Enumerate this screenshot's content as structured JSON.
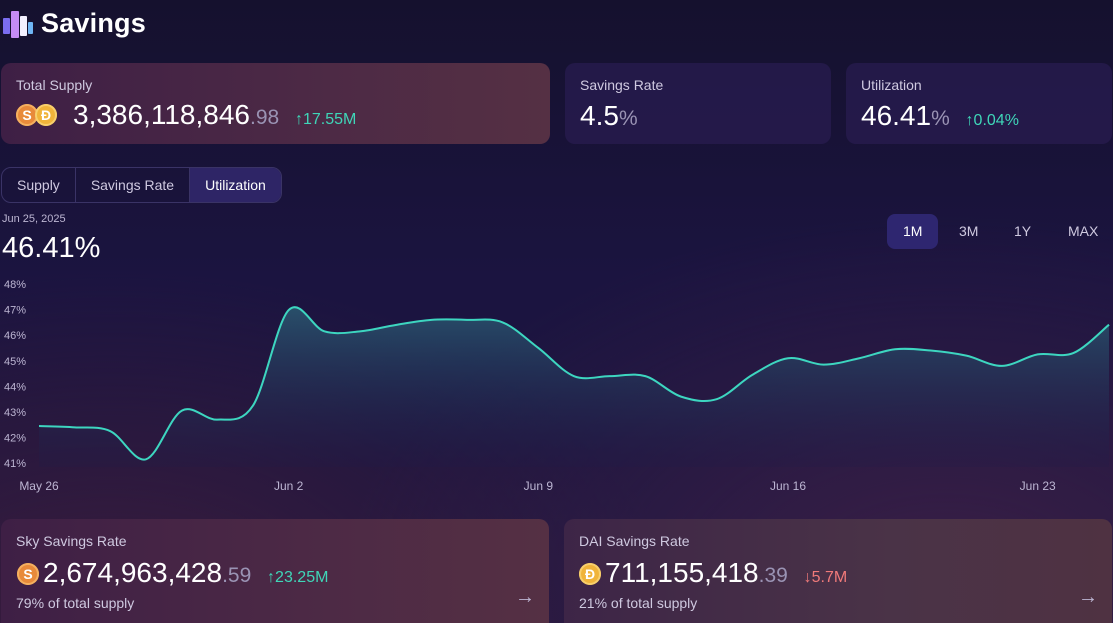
{
  "app": {
    "title": "Savings"
  },
  "stats": {
    "total_supply": {
      "label": "Total Supply",
      "int": "3,386,118,846",
      "dec": ".98",
      "delta": "↑17.55M"
    },
    "savings_rate": {
      "label": "Savings Rate",
      "value": "4.5",
      "unit": "%"
    },
    "utilization": {
      "label": "Utilization",
      "value": "46.41",
      "unit": "%",
      "delta": "↑0.04%"
    }
  },
  "tabs": [
    "Supply",
    "Savings Rate",
    "Utilization"
  ],
  "active_tab": "Utilization",
  "chart_header": {
    "date": "Jun 25, 2025",
    "value": "46.41%"
  },
  "ranges": [
    "1M",
    "3M",
    "1Y",
    "MAX"
  ],
  "active_range": "1M",
  "colors": {
    "line": "#3dd6c0",
    "up": "#3fd6b8",
    "down": "#f07a7a"
  },
  "chart_data": {
    "type": "area",
    "title": "",
    "xlabel": "",
    "ylabel": "",
    "yticks": [
      "48%",
      "47%",
      "46%",
      "45%",
      "44%",
      "43%",
      "42%",
      "41%"
    ],
    "xticks": [
      "May 26",
      "Jun 2",
      "Jun 9",
      "Jun 16",
      "Jun 23"
    ],
    "ylim": [
      40.85,
      48.0
    ],
    "x": [
      "May 26",
      "May 27",
      "May 28",
      "May 29",
      "May 30",
      "May 31",
      "Jun 1",
      "Jun 2",
      "Jun 3",
      "Jun 4",
      "Jun 5",
      "Jun 6",
      "Jun 7",
      "Jun 8",
      "Jun 9",
      "Jun 10",
      "Jun 11",
      "Jun 12",
      "Jun 13",
      "Jun 14",
      "Jun 15",
      "Jun 16",
      "Jun 17",
      "Jun 18",
      "Jun 19",
      "Jun 20",
      "Jun 21",
      "Jun 22",
      "Jun 23",
      "Jun 24",
      "Jun 25"
    ],
    "series": [
      {
        "values": [
          42.45,
          42.4,
          42.25,
          41.15,
          43.05,
          42.7,
          43.25,
          46.98,
          46.15,
          46.15,
          46.4,
          46.6,
          46.6,
          46.5,
          45.5,
          44.4,
          44.4,
          44.4,
          43.6,
          43.5,
          44.45,
          45.1,
          44.85,
          45.1,
          45.45,
          45.4,
          45.2,
          44.8,
          45.25,
          45.3,
          46.41
        ]
      }
    ]
  },
  "bottom": {
    "sky": {
      "label": "Sky Savings Rate",
      "int": "2,674,963,428",
      "dec": ".59",
      "delta": "↑23.25M",
      "sub": "79% of total supply"
    },
    "dai": {
      "label": "DAI Savings Rate",
      "int": "711,155,418",
      "dec": ".39",
      "delta": "↓5.7M",
      "sub": "21% of total supply"
    }
  },
  "icons": {
    "coin_sky": "S",
    "coin_dai": "Đ",
    "arrow": "→"
  }
}
